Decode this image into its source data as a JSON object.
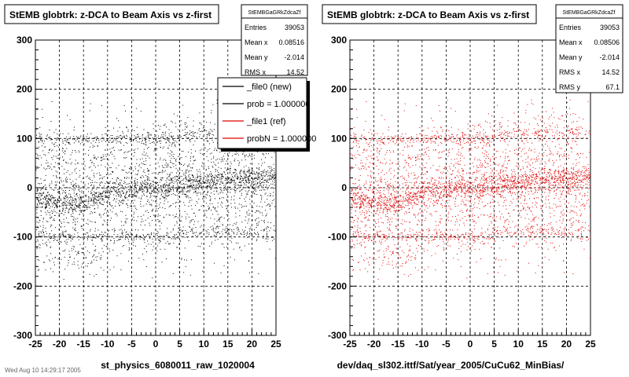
{
  "footer": "Wed Aug 10 14:29:17 2005",
  "chart_data": [
    {
      "type": "scatter",
      "title": "StEMB globtrk: z-DCA to Beam Axis vs z-first",
      "xlabel": "st_physics_6080011_raw_1020004",
      "xlim": [
        -25,
        25
      ],
      "ylim": [
        -300,
        300
      ],
      "xticks": [
        "-25",
        "-20",
        "-15",
        "-10",
        "-5",
        "0",
        "5",
        "10",
        "15",
        "20",
        "25"
      ],
      "yticks": [
        "-300",
        "-200",
        "-100",
        "0",
        "100",
        "200",
        "300"
      ],
      "grid": true,
      "color": "#000000",
      "stats": {
        "name": "StEMBGaGRkZdcaZf",
        "rows": [
          {
            "label": "Entries",
            "value": "39053"
          },
          {
            "label": "Mean x",
            "value": "0.08516"
          },
          {
            "label": "Mean y",
            "value": "-2.014"
          },
          {
            "label": "RMS x",
            "value": "14.52"
          }
        ]
      },
      "legend": {
        "placement": "top-right",
        "entries": [
          {
            "label": "_file0 (new)",
            "color": "#000000"
          },
          {
            "label": "prob = 1.000000",
            "color": "#000000"
          },
          {
            "label": "_file1 (ref)",
            "color": "#e00000"
          },
          {
            "label": "probN = 1.000000",
            "color": "#e00000"
          }
        ]
      },
      "density": {
        "x_bins": [
          -25,
          -20,
          -15,
          -10,
          -5,
          0,
          5,
          10,
          15,
          20,
          25
        ],
        "band_center_y": [
          -20,
          -30,
          -35,
          -10,
          -5,
          0,
          5,
          10,
          15,
          20,
          25
        ]
      }
    },
    {
      "type": "scatter",
      "title": "StEMB globtrk: z-DCA to Beam Axis vs z-first",
      "xlabel": "dev/daq_sl302.ittf/Sat/year_2005/CuCu62_MinBias/",
      "xlim": [
        -25,
        25
      ],
      "ylim": [
        -300,
        300
      ],
      "xticks": [
        "-25",
        "-20",
        "-15",
        "-10",
        "-5",
        "0",
        "5",
        "10",
        "15",
        "20",
        "25"
      ],
      "yticks": [
        "-300",
        "-200",
        "-100",
        "0",
        "100",
        "200",
        "300"
      ],
      "grid": true,
      "color": "#e00000",
      "stats": {
        "name": "StEMBGaGRkZdcaZf",
        "rows": [
          {
            "label": "Entries",
            "value": "39053"
          },
          {
            "label": "Mean x",
            "value": "0.08506"
          },
          {
            "label": "Mean y",
            "value": "-2.014"
          },
          {
            "label": "RMS x",
            "value": "14.52"
          },
          {
            "label": "RMS y",
            "value": "67.1"
          }
        ]
      }
    }
  ]
}
